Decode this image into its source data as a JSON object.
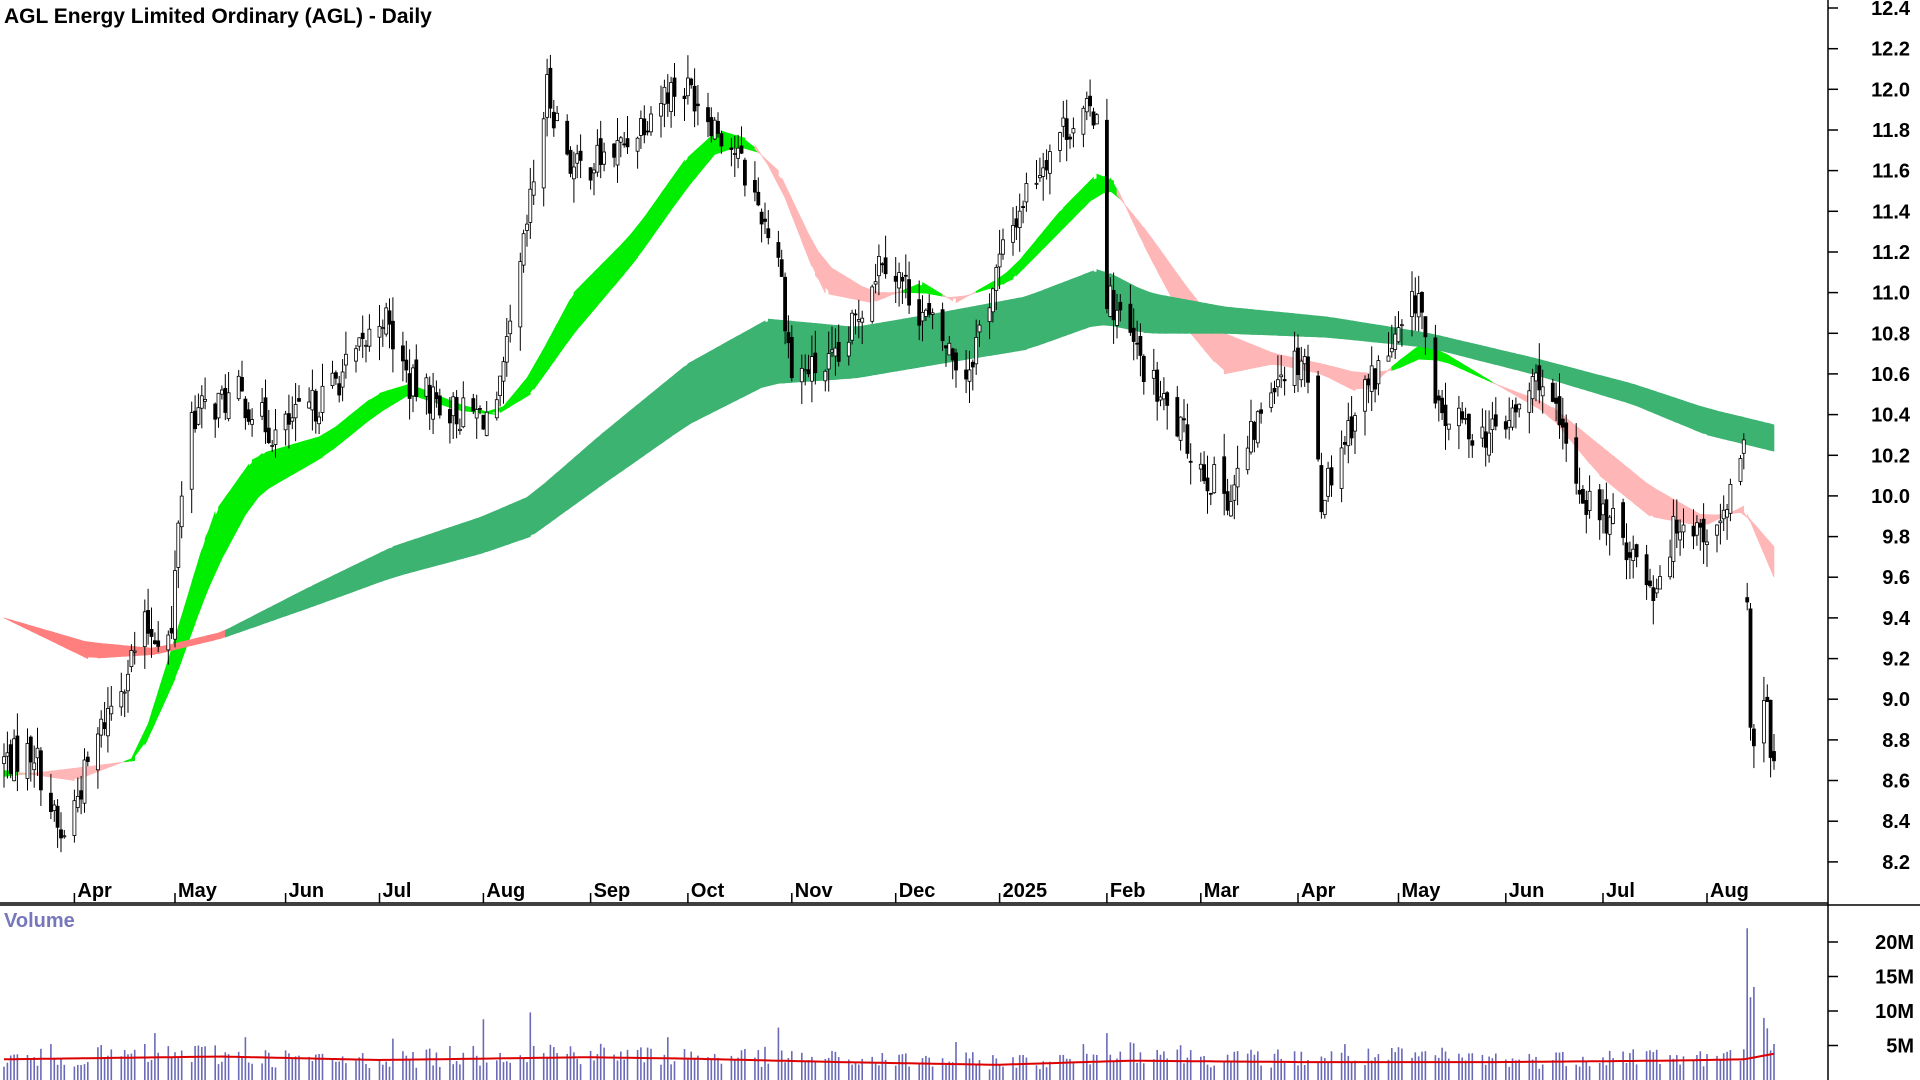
{
  "chart_data": [
    {
      "type": "candlestick",
      "title": "AGL Energy Limited Ordinary (AGL) - Daily",
      "y_axis": {
        "ticks": [
          "12.4",
          "12.2",
          "12.0",
          "11.8",
          "11.6",
          "11.4",
          "11.2",
          "11.0",
          "10.8",
          "10.6",
          "10.4",
          "10.2",
          "10.0",
          "9.8",
          "9.6",
          "9.4",
          "9.2",
          "9.0",
          "8.8",
          "8.6",
          "8.4",
          "8.2"
        ],
        "range": [
          8.1,
          12.45
        ]
      },
      "x_axis": {
        "ticks": [
          "Apr",
          "May",
          "Jun",
          "Jul",
          "Aug",
          "Sep",
          "Oct",
          "Nov",
          "Dec",
          "2025",
          "Feb",
          "Mar",
          "Apr",
          "May",
          "Jun",
          "Jul",
          "Aug"
        ]
      },
      "price_path": [
        [
          "2024-03-11",
          8.7
        ],
        [
          "2024-03-20",
          8.75
        ],
        [
          "2024-03-28",
          8.3
        ],
        [
          "2024-04-10",
          8.9
        ],
        [
          "2024-04-22",
          9.35
        ],
        [
          "2024-04-30",
          9.3
        ],
        [
          "2024-05-02",
          9.9
        ],
        [
          "2024-05-06",
          10.4
        ],
        [
          "2024-05-20",
          10.5
        ],
        [
          "2024-05-31",
          10.3
        ],
        [
          "2024-06-12",
          10.45
        ],
        [
          "2024-06-25",
          10.7
        ],
        [
          "2024-07-02",
          10.9
        ],
        [
          "2024-07-10",
          10.55
        ],
        [
          "2024-07-25",
          10.4
        ],
        [
          "2024-08-05",
          10.4
        ],
        [
          "2024-08-12",
          11.1
        ],
        [
          "2024-08-20",
          12.0
        ],
        [
          "2024-08-28",
          11.6
        ],
        [
          "2024-09-10",
          11.7
        ],
        [
          "2024-09-25",
          12.0
        ],
        [
          "2024-10-02",
          12.0
        ],
        [
          "2024-10-15",
          11.7
        ],
        [
          "2024-10-28",
          11.2
        ],
        [
          "2024-11-01",
          10.6
        ],
        [
          "2024-11-15",
          10.65
        ],
        [
          "2024-11-28",
          11.2
        ],
        [
          "2024-12-10",
          10.9
        ],
        [
          "2024-12-23",
          10.6
        ],
        [
          "2025-01-03",
          11.2
        ],
        [
          "2025-01-10",
          11.5
        ],
        [
          "2025-01-20",
          11.8
        ],
        [
          "2025-01-31",
          11.9
        ],
        [
          "2025-02-03",
          11.0
        ],
        [
          "2025-02-18",
          10.5
        ],
        [
          "2025-03-05",
          10.1
        ],
        [
          "2025-03-12",
          10.0
        ],
        [
          "2025-03-25",
          10.6
        ],
        [
          "2025-04-03",
          10.7
        ],
        [
          "2025-04-08",
          10.0
        ],
        [
          "2025-04-20",
          10.5
        ],
        [
          "2025-05-02",
          10.8
        ],
        [
          "2025-05-07",
          11.0
        ],
        [
          "2025-05-12",
          10.4
        ],
        [
          "2025-05-28",
          10.3
        ],
        [
          "2025-06-05",
          10.4
        ],
        [
          "2025-06-12",
          10.6
        ],
        [
          "2025-06-25",
          10.0
        ],
        [
          "2025-07-07",
          9.8
        ],
        [
          "2025-07-16",
          9.55
        ],
        [
          "2025-07-24",
          9.9
        ],
        [
          "2025-08-04",
          9.8
        ],
        [
          "2025-08-12",
          10.2
        ],
        [
          "2025-08-13",
          9.4
        ],
        [
          "2025-08-14",
          8.8
        ],
        [
          "2025-08-18",
          9.0
        ],
        [
          "2025-08-21",
          8.7
        ]
      ],
      "moving_average_ribbons": [
        {
          "name": "short-term",
          "fast": [
            [
              "2024-03-11",
              8.65
            ],
            [
              "2024-04-01",
              8.6
            ],
            [
              "2024-04-20",
              8.72
            ],
            [
              "2024-05-01",
              9.3
            ],
            [
              "2024-05-12",
              9.9
            ],
            [
              "2024-05-25",
              10.2
            ],
            [
              "2024-06-15",
              10.3
            ],
            [
              "2024-06-30",
              10.5
            ],
            [
              "2024-07-10",
              10.55
            ],
            [
              "2024-07-25",
              10.45
            ],
            [
              "2024-08-05",
              10.4
            ],
            [
              "2024-08-15",
              10.6
            ],
            [
              "2024-08-28",
              11.0
            ],
            [
              "2024-09-15",
              11.3
            ],
            [
              "2024-09-30",
              11.65
            ],
            [
              "2024-10-10",
              11.8
            ],
            [
              "2024-10-20",
              11.75
            ],
            [
              "2024-10-28",
              11.55
            ],
            [
              "2024-11-10",
              11.0
            ],
            [
              "2024-11-25",
              10.95
            ],
            [
              "2024-12-10",
              11.05
            ],
            [
              "2024-12-20",
              10.95
            ],
            [
              "2025-01-05",
              11.1
            ],
            [
              "2025-01-20",
              11.4
            ],
            [
              "2025-02-01",
              11.6
            ],
            [
              "2025-02-05",
              11.55
            ],
            [
              "2025-02-15",
              11.2
            ],
            [
              "2025-02-28",
              10.8
            ],
            [
              "2025-03-10",
              10.6
            ],
            [
              "2025-03-25",
              10.65
            ],
            [
              "2025-04-08",
              10.6
            ],
            [
              "2025-04-20",
              10.5
            ],
            [
              "2025-04-30",
              10.65
            ],
            [
              "2025-05-08",
              10.75
            ],
            [
              "2025-05-15",
              10.7
            ],
            [
              "2025-05-30",
              10.55
            ],
            [
              "2025-06-15",
              10.4
            ],
            [
              "2025-06-30",
              10.1
            ],
            [
              "2025-07-15",
              9.9
            ],
            [
              "2025-07-31",
              9.85
            ],
            [
              "2025-08-12",
              9.95
            ],
            [
              "2025-08-21",
              9.6
            ]
          ],
          "slow": [
            [
              "2024-03-11",
              8.62
            ],
            [
              "2024-04-01",
              8.66
            ],
            [
              "2024-04-20",
              8.7
            ],
            [
              "2024-05-01",
              9.1
            ],
            [
              "2024-05-12",
              9.6
            ],
            [
              "2024-05-25",
              10.0
            ],
            [
              "2024-06-15",
              10.2
            ],
            [
              "2024-06-30",
              10.4
            ],
            [
              "2024-07-10",
              10.5
            ],
            [
              "2024-07-25",
              10.42
            ],
            [
              "2024-08-05",
              10.4
            ],
            [
              "2024-08-15",
              10.5
            ],
            [
              "2024-08-28",
              10.8
            ],
            [
              "2024-09-15",
              11.15
            ],
            [
              "2024-09-30",
              11.5
            ],
            [
              "2024-10-10",
              11.7
            ],
            [
              "2024-10-20",
              11.72
            ],
            [
              "2024-10-28",
              11.6
            ],
            [
              "2024-11-10",
              11.15
            ],
            [
              "2024-11-25",
              11.0
            ],
            [
              "2024-12-10",
              11.0
            ],
            [
              "2024-12-20",
              10.97
            ],
            [
              "2025-01-05",
              11.05
            ],
            [
              "2025-01-20",
              11.3
            ],
            [
              "2025-02-01",
              11.5
            ],
            [
              "2025-02-05",
              11.5
            ],
            [
              "2025-02-15",
              11.3
            ],
            [
              "2025-02-28",
              11.0
            ],
            [
              "2025-03-10",
              10.8
            ],
            [
              "2025-03-25",
              10.7
            ],
            [
              "2025-04-08",
              10.65
            ],
            [
              "2025-04-20",
              10.6
            ],
            [
              "2025-04-30",
              10.62
            ],
            [
              "2025-05-08",
              10.68
            ],
            [
              "2025-05-15",
              10.66
            ],
            [
              "2025-05-30",
              10.55
            ],
            [
              "2025-06-15",
              10.45
            ],
            [
              "2025-06-30",
              10.25
            ],
            [
              "2025-07-15",
              10.05
            ],
            [
              "2025-07-31",
              9.9
            ],
            [
              "2025-08-12",
              9.92
            ],
            [
              "2025-08-21",
              9.75
            ]
          ]
        },
        {
          "name": "long-term",
          "fast": [
            [
              "2024-03-11",
              9.4
            ],
            [
              "2024-04-05",
              9.28
            ],
            [
              "2024-04-25",
              9.25
            ],
            [
              "2024-05-15",
              9.33
            ],
            [
              "2024-06-10",
              9.55
            ],
            [
              "2024-07-05",
              9.75
            ],
            [
              "2024-08-01",
              9.9
            ],
            [
              "2024-08-15",
              10.0
            ],
            [
              "2024-09-05",
              10.3
            ],
            [
              "2024-10-01",
              10.65
            ],
            [
              "2024-10-25",
              10.87
            ],
            [
              "2024-11-20",
              10.83
            ],
            [
              "2024-12-15",
              10.9
            ],
            [
              "2025-01-10",
              10.98
            ],
            [
              "2025-02-01",
              11.12
            ],
            [
              "2025-02-15",
              11.0
            ],
            [
              "2025-03-10",
              10.93
            ],
            [
              "2025-04-10",
              10.88
            ],
            [
              "2025-05-10",
              10.8
            ],
            [
              "2025-06-10",
              10.68
            ],
            [
              "2025-07-10",
              10.55
            ],
            [
              "2025-08-01",
              10.43
            ],
            [
              "2025-08-21",
              10.35
            ]
          ],
          "slow": [
            [
              "2024-03-11",
              9.4
            ],
            [
              "2024-04-05",
              9.2
            ],
            [
              "2024-04-25",
              9.22
            ],
            [
              "2024-05-15",
              9.3
            ],
            [
              "2024-06-10",
              9.45
            ],
            [
              "2024-07-05",
              9.6
            ],
            [
              "2024-08-01",
              9.72
            ],
            [
              "2024-08-15",
              9.8
            ],
            [
              "2024-09-05",
              10.05
            ],
            [
              "2024-10-01",
              10.35
            ],
            [
              "2024-10-25",
              10.55
            ],
            [
              "2024-11-20",
              10.58
            ],
            [
              "2024-12-15",
              10.65
            ],
            [
              "2025-01-10",
              10.72
            ],
            [
              "2025-02-01",
              10.85
            ],
            [
              "2025-02-15",
              10.8
            ],
            [
              "2025-03-10",
              10.8
            ],
            [
              "2025-04-10",
              10.78
            ],
            [
              "2025-05-10",
              10.73
            ],
            [
              "2025-06-10",
              10.6
            ],
            [
              "2025-07-10",
              10.45
            ],
            [
              "2025-08-01",
              10.3
            ],
            [
              "2025-08-21",
              10.22
            ]
          ]
        }
      ],
      "colors": {
        "up_candle": "#ffffff",
        "down_candle": "#000000",
        "ribbon_short_up": "#00ee00",
        "ribbon_short_down": "#ffb6b6",
        "ribbon_long_up": "#3cb371",
        "ribbon_long_down": "#ff6622",
        "ribbon_mixed": "#ff7f7f",
        "volume_bar": "#6a6ab8",
        "volume_average": "#dd0000"
      }
    },
    {
      "type": "bar",
      "title": "Volume",
      "y_axis": {
        "ticks": [
          "20M",
          "15M",
          "10M",
          "5M"
        ],
        "range": [
          0,
          23000000
        ]
      },
      "volume_path": [
        [
          "2024-03-11",
          3000000
        ],
        [
          "2024-04-15",
          3600000
        ],
        [
          "2024-05-10",
          3800000
        ],
        [
          "2024-06-15",
          2800000
        ],
        [
          "2024-07-15",
          3200000
        ],
        [
          "2024-08-20",
          4200000
        ],
        [
          "2024-09-20",
          3500000
        ],
        [
          "2024-10-20",
          3400000
        ],
        [
          "2024-11-20",
          2900000
        ],
        [
          "2024-12-20",
          2800000
        ],
        [
          "2025-01-20",
          2700000
        ],
        [
          "2025-02-05",
          4800000
        ],
        [
          "2025-03-10",
          3100000
        ],
        [
          "2025-04-10",
          3200000
        ],
        [
          "2025-05-10",
          3400000
        ],
        [
          "2025-06-10",
          2900000
        ],
        [
          "2025-07-10",
          3600000
        ],
        [
          "2025-08-01",
          3000000
        ],
        [
          "2025-08-21",
          3800000
        ]
      ],
      "volume_spikes": [
        [
          "2024-03-25",
          5200000
        ],
        [
          "2024-04-25",
          6800000
        ],
        [
          "2024-05-22",
          6200000
        ],
        [
          "2024-07-05",
          6000000
        ],
        [
          "2024-08-01",
          8800000
        ],
        [
          "2024-08-15",
          9800000
        ],
        [
          "2024-09-25",
          6200000
        ],
        [
          "2024-10-28",
          7600000
        ],
        [
          "2024-12-20",
          5500000
        ],
        [
          "2025-02-03",
          6800000
        ],
        [
          "2025-04-15",
          5200000
        ],
        [
          "2025-07-05",
          6600000
        ],
        [
          "2025-08-13",
          22000000
        ],
        [
          "2025-08-14",
          12000000
        ],
        [
          "2025-08-15",
          13500000
        ],
        [
          "2025-08-18",
          9000000
        ],
        [
          "2025-08-19",
          7500000
        ]
      ],
      "average": [
        [
          "2024-03-11",
          3000000
        ],
        [
          "2024-05-15",
          3400000
        ],
        [
          "2024-07-01",
          2900000
        ],
        [
          "2024-09-01",
          3300000
        ],
        [
          "2024-10-01",
          3100000
        ],
        [
          "2024-11-15",
          2600000
        ],
        [
          "2025-01-01",
          2200000
        ],
        [
          "2025-02-10",
          2800000
        ],
        [
          "2025-04-01",
          2600000
        ],
        [
          "2025-06-01",
          2600000
        ],
        [
          "2025-07-20",
          2800000
        ],
        [
          "2025-08-12",
          3000000
        ],
        [
          "2025-08-21",
          3800000
        ]
      ]
    }
  ]
}
